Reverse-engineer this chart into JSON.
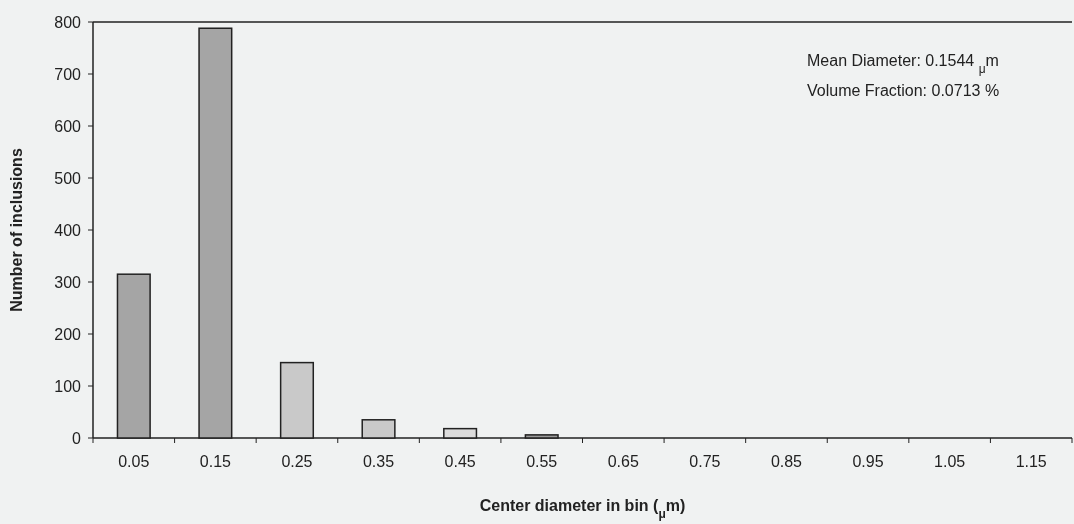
{
  "chart_data": {
    "type": "bar",
    "categories": [
      "0.05",
      "0.15",
      "0.25",
      "0.35",
      "0.45",
      "0.55",
      "0.65",
      "0.75",
      "0.85",
      "0.95",
      "1.05",
      "1.15"
    ],
    "values": [
      315,
      788,
      145,
      35,
      18,
      6,
      0,
      0,
      0,
      0,
      0,
      0
    ],
    "colors": [
      "#a5a5a5",
      "#a5a5a5",
      "#c9c9c9",
      "#c9c9c9",
      "#dcdcdc",
      "#9a9a9a",
      "#c9c9c9",
      "#c9c9c9",
      "#c9c9c9",
      "#c9c9c9",
      "#c9c9c9",
      "#c9c9c9"
    ],
    "xlabel": "Center diameter in bin ($_{μ}$m)",
    "ylabel": "Number of inclusions",
    "ylim": [
      0,
      800
    ],
    "yticks": [
      0,
      100,
      200,
      300,
      400,
      500,
      600,
      700,
      800
    ],
    "annotations": [
      "Mean Diameter:  0.1544 $_{μ}$m",
      "Volume Fraction: 0.0713 %"
    ]
  }
}
